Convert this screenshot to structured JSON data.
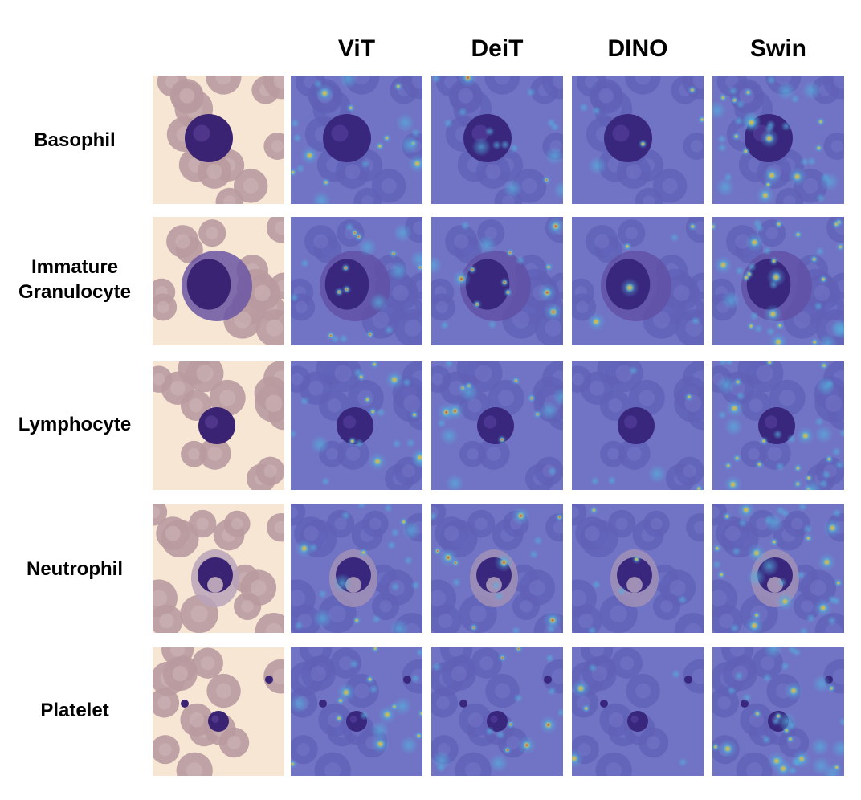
{
  "columns": [
    "ViT",
    "DeiT",
    "DINO",
    "Swin"
  ],
  "rows": [
    {
      "label": "Basophil"
    },
    {
      "label": "Immature Granulocyte"
    },
    {
      "label": "Lymphocyte"
    },
    {
      "label": "Neutrophil"
    },
    {
      "label": "Platelet"
    }
  ],
  "colors": {
    "original_background": "#f7e6d4",
    "red_cell": "#b89aa0",
    "nucleus": "#3a2373",
    "heatmap_base": "#7e7fc9",
    "heatmap_mid": "#5cc8e6",
    "heatmap_hot": "#e8d84a",
    "heatmap_peak": "#e6402a"
  }
}
